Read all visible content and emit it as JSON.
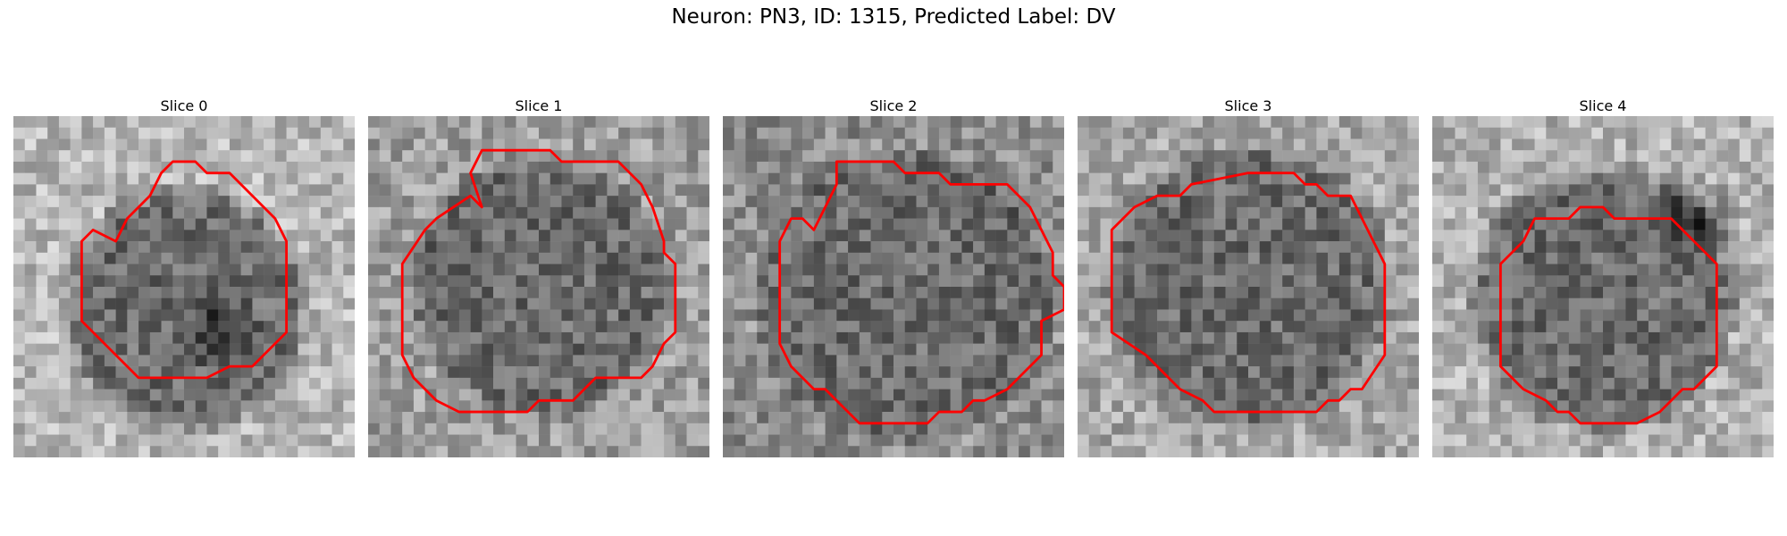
{
  "figure": {
    "title": "Neuron: PN3, ID: 1315, Predicted Label: DV",
    "contour_color": "#ff0000",
    "grid_size": 30
  },
  "panels": [
    {
      "title": "Slice 0",
      "seed": 11,
      "center": [
        15,
        17
      ],
      "radius": 9,
      "dark_spot": [
        18,
        19
      ],
      "bg": 0.72,
      "contour": [
        [
          9,
          11
        ],
        [
          10,
          9
        ],
        [
          11,
          8
        ],
        [
          12,
          7
        ],
        [
          13,
          5
        ],
        [
          14,
          4
        ],
        [
          16,
          4
        ],
        [
          17,
          5
        ],
        [
          19,
          5
        ],
        [
          21,
          7
        ],
        [
          23,
          9
        ],
        [
          24,
          11
        ],
        [
          24,
          19
        ],
        [
          22,
          21
        ],
        [
          21,
          22
        ],
        [
          20,
          22
        ],
        [
          19,
          22
        ],
        [
          17,
          23
        ],
        [
          11,
          23
        ],
        [
          9,
          21
        ],
        [
          7,
          19
        ],
        [
          6,
          18
        ],
        [
          6,
          11
        ],
        [
          7,
          10
        ]
      ]
    },
    {
      "title": "Slice 1",
      "seed": 23,
      "center": [
        15,
        15
      ],
      "radius": 10,
      "dark_spot": null,
      "bg": 0.62,
      "contour": [
        [
          9,
          5
        ],
        [
          10,
          3
        ],
        [
          11,
          3
        ],
        [
          16,
          3
        ],
        [
          17,
          4
        ],
        [
          22,
          4
        ],
        [
          24,
          6
        ],
        [
          25,
          8
        ],
        [
          26,
          11
        ],
        [
          26,
          12
        ],
        [
          27,
          13
        ],
        [
          27,
          19
        ],
        [
          26,
          20
        ],
        [
          25,
          22
        ],
        [
          24,
          23
        ],
        [
          20,
          23
        ],
        [
          19,
          24
        ],
        [
          18,
          25
        ],
        [
          15,
          25
        ],
        [
          14,
          26
        ],
        [
          8,
          26
        ],
        [
          6,
          25
        ],
        [
          4,
          23
        ],
        [
          3,
          21
        ],
        [
          3,
          13
        ],
        [
          5,
          10
        ],
        [
          6,
          9
        ],
        [
          9,
          7
        ],
        [
          10,
          8
        ]
      ]
    },
    {
      "title": "Slice 2",
      "seed": 37,
      "center": [
        16,
        16
      ],
      "radius": 12,
      "dark_spot": null,
      "bg": 0.55,
      "contour": [
        [
          10,
          4
        ],
        [
          15,
          4
        ],
        [
          16,
          5
        ],
        [
          19,
          5
        ],
        [
          20,
          6
        ],
        [
          25,
          6
        ],
        [
          27,
          8
        ],
        [
          28,
          10
        ],
        [
          29,
          12
        ],
        [
          29,
          14
        ],
        [
          30,
          15
        ],
        [
          30,
          17
        ],
        [
          28,
          18
        ],
        [
          28,
          21
        ],
        [
          27,
          22
        ],
        [
          25,
          24
        ],
        [
          23,
          25
        ],
        [
          22,
          25
        ],
        [
          21,
          26
        ],
        [
          19,
          26
        ],
        [
          18,
          27
        ],
        [
          12,
          27
        ],
        [
          10,
          25
        ],
        [
          9,
          24
        ],
        [
          8,
          24
        ],
        [
          6,
          22
        ],
        [
          5,
          20
        ],
        [
          5,
          11
        ],
        [
          6,
          9
        ],
        [
          7,
          9
        ],
        [
          8,
          10
        ],
        [
          9,
          8
        ],
        [
          10,
          6
        ]
      ]
    },
    {
      "title": "Slice 3",
      "seed": 53,
      "center": [
        15,
        15
      ],
      "radius": 11,
      "dark_spot": null,
      "bg": 0.66,
      "contour": [
        [
          10,
          6
        ],
        [
          15,
          5
        ],
        [
          19,
          5
        ],
        [
          20,
          6
        ],
        [
          21,
          6
        ],
        [
          22,
          7
        ],
        [
          24,
          7
        ],
        [
          25,
          9
        ],
        [
          26,
          11
        ],
        [
          27,
          13
        ],
        [
          27,
          21
        ],
        [
          25,
          24
        ],
        [
          24,
          24
        ],
        [
          23,
          25
        ],
        [
          22,
          25
        ],
        [
          21,
          26
        ],
        [
          18,
          26
        ],
        [
          12,
          26
        ],
        [
          11,
          25
        ],
        [
          9,
          24
        ],
        [
          8,
          23
        ],
        [
          7,
          22
        ],
        [
          6,
          21
        ],
        [
          3,
          19
        ],
        [
          3,
          10
        ],
        [
          5,
          8
        ],
        [
          7,
          7
        ],
        [
          9,
          7
        ]
      ]
    },
    {
      "title": "Slice 4",
      "seed": 71,
      "center": [
        15,
        16
      ],
      "radius": 10,
      "dark_spot": [
        23,
        9
      ],
      "bg": 0.7,
      "contour": [
        [
          9,
          9
        ],
        [
          12,
          9
        ],
        [
          13,
          8
        ],
        [
          15,
          8
        ],
        [
          16,
          9
        ],
        [
          21,
          9
        ],
        [
          23,
          11
        ],
        [
          25,
          13
        ],
        [
          25,
          22
        ],
        [
          23,
          24
        ],
        [
          22,
          24
        ],
        [
          21,
          25
        ],
        [
          20,
          26
        ],
        [
          18,
          27
        ],
        [
          13,
          27
        ],
        [
          12,
          26
        ],
        [
          11,
          26
        ],
        [
          10,
          25
        ],
        [
          8,
          24
        ],
        [
          7,
          23
        ],
        [
          6,
          22
        ],
        [
          6,
          13
        ],
        [
          8,
          11
        ]
      ]
    }
  ]
}
